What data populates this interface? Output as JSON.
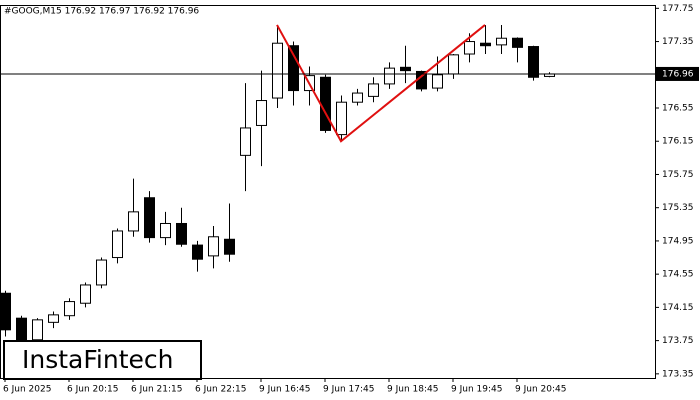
{
  "chart_data": {
    "type": "candlestick",
    "title": "#GOOG,M15  176.92 176.97 176.92 176.96",
    "categories": [
      "6 Jun 2025",
      null,
      null,
      null,
      "6 Jun 20:15",
      null,
      null,
      null,
      "6 Jun 21:15",
      null,
      null,
      null,
      "6 Jun 22:15",
      null,
      null,
      null,
      "9 Jun 16:45",
      null,
      null,
      null,
      "9 Jun 17:45",
      null,
      null,
      null,
      "9 Jun 18:45",
      null,
      null,
      null,
      "9 Jun 19:45",
      null,
      null,
      null,
      "9 Jun 20:45",
      null,
      null
    ],
    "open": [
      174.32,
      174.02,
      173.76,
      173.97,
      174.05,
      174.2,
      174.42,
      174.75,
      175.07,
      175.47,
      174.99,
      175.16,
      174.9,
      174.77,
      174.97,
      175.98,
      176.34,
      176.67,
      177.3,
      176.76,
      176.92,
      176.23,
      176.62,
      176.69,
      176.84,
      177.04,
      176.99,
      176.79,
      176.96,
      177.2,
      177.33,
      177.31,
      177.39,
      177.29,
      176.93
    ],
    "high": [
      174.35,
      174.05,
      174.02,
      174.1,
      174.26,
      174.45,
      174.75,
      175.1,
      175.7,
      175.55,
      175.3,
      175.35,
      174.95,
      175.13,
      175.4,
      176.85,
      177.0,
      177.55,
      177.35,
      177.05,
      176.95,
      176.7,
      176.78,
      176.92,
      177.1,
      177.3,
      177.0,
      177.17,
      177.2,
      177.45,
      177.55,
      177.55,
      177.4,
      177.3,
      176.98
    ],
    "low": [
      173.8,
      173.7,
      173.72,
      173.9,
      174.0,
      174.15,
      174.38,
      174.68,
      175.0,
      174.93,
      174.9,
      174.88,
      174.58,
      174.62,
      174.7,
      175.55,
      175.85,
      176.55,
      176.58,
      176.58,
      176.25,
      176.15,
      176.58,
      176.62,
      176.78,
      176.85,
      176.75,
      176.75,
      176.9,
      177.1,
      177.2,
      177.2,
      177.1,
      176.88,
      176.92
    ],
    "close": [
      173.88,
      173.76,
      174.0,
      174.06,
      174.22,
      174.42,
      174.72,
      175.07,
      175.3,
      174.99,
      175.16,
      174.91,
      174.73,
      175.0,
      174.79,
      176.31,
      176.64,
      177.33,
      176.76,
      176.94,
      176.28,
      176.62,
      176.73,
      176.84,
      177.03,
      177.0,
      176.78,
      176.95,
      177.19,
      177.35,
      177.3,
      177.39,
      177.28,
      176.92,
      176.96
    ],
    "up_color": "#ffffff",
    "down_color": "#000000",
    "pattern": {
      "color": "#e01010",
      "x": [
        17,
        21,
        30
      ],
      "values": [
        177.55,
        176.15,
        177.55
      ]
    },
    "current_price": 176.96,
    "ylim": [
      173.3,
      177.79
    ],
    "yticks": [
      177.75,
      177.35,
      176.95,
      176.55,
      176.15,
      175.75,
      175.35,
      174.95,
      174.55,
      174.15,
      173.75,
      173.35
    ],
    "logo": "InstaFintech"
  }
}
